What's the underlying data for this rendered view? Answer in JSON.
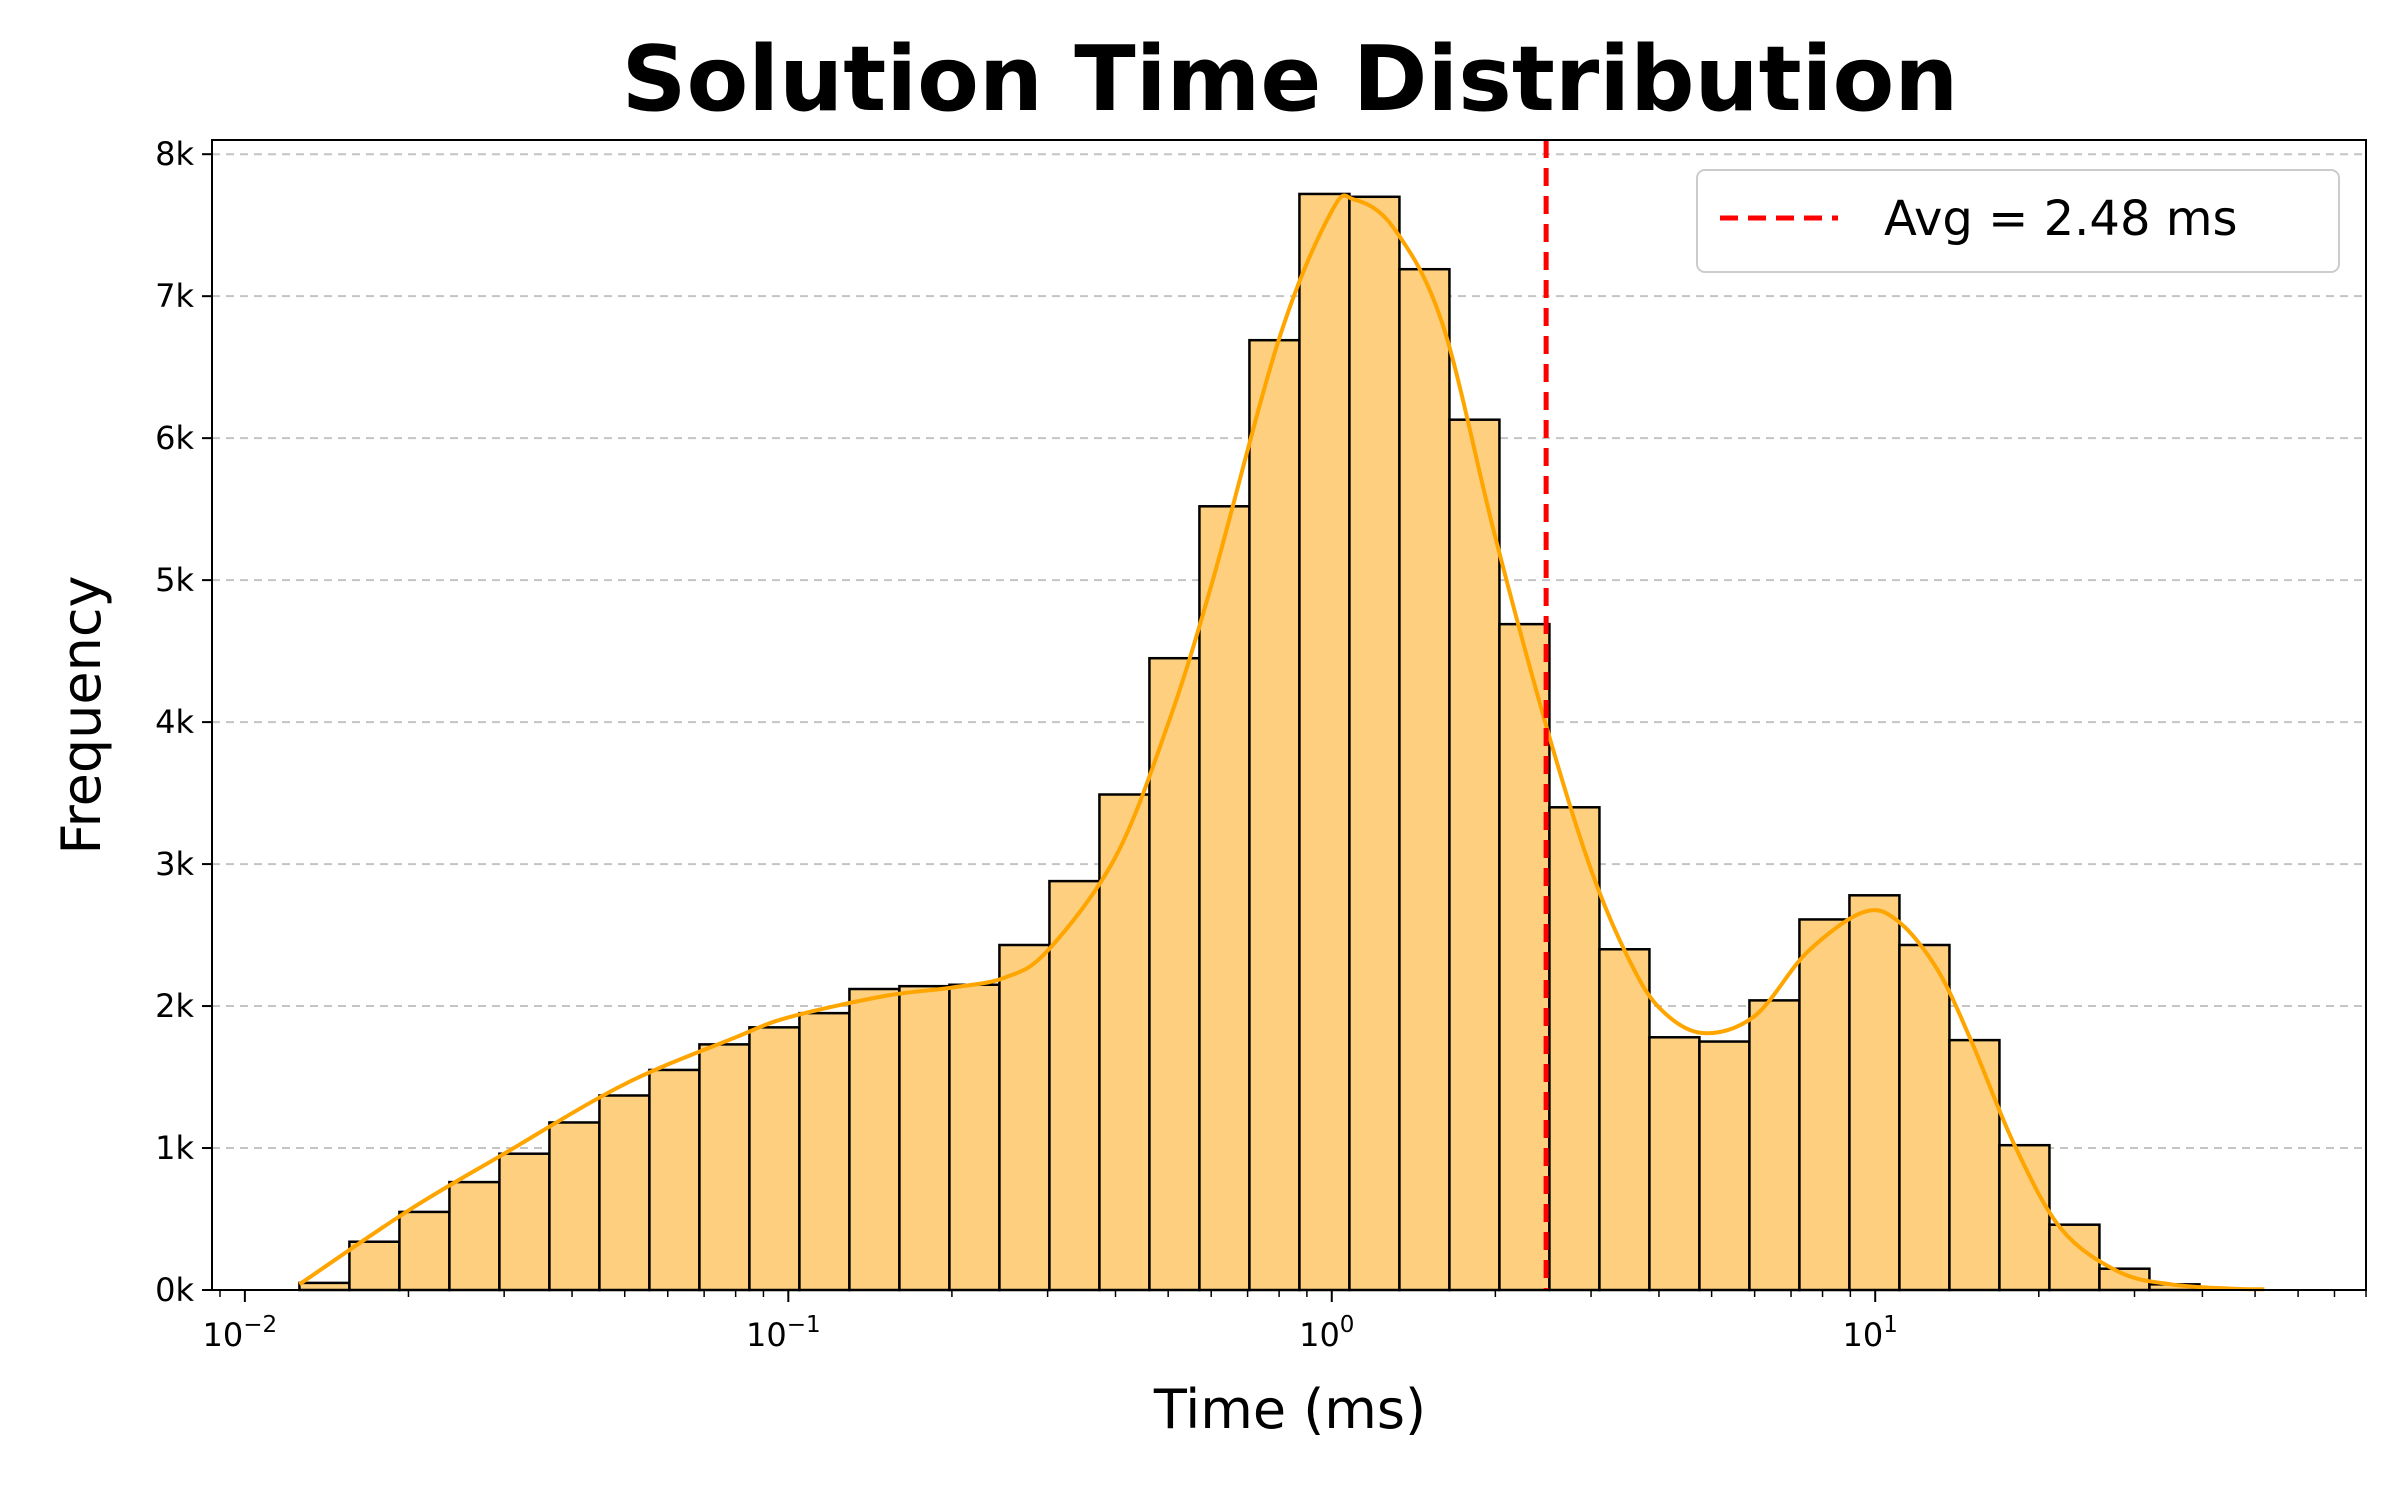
{
  "chart_data": {
    "type": "bar",
    "title": "Solution Time Distribution",
    "xlabel": "Time (ms)",
    "ylabel": "Frequency",
    "x_scale": "log",
    "xlim": [
      0.0087,
      80
    ],
    "ylim": [
      0,
      8100
    ],
    "grid": {
      "axis": "y",
      "style": "dashed"
    },
    "legend": {
      "position": "top-right",
      "entries": [
        "Avg = 2.48 ms"
      ]
    },
    "x_ticks": [
      {
        "value": 0.01,
        "base": "10",
        "exponent": "−2"
      },
      {
        "value": 0.1,
        "base": "10",
        "exponent": "−1"
      },
      {
        "value": 1,
        "base": "10",
        "exponent": "0"
      },
      {
        "value": 10,
        "base": "10",
        "exponent": "1"
      }
    ],
    "y_ticks": [
      {
        "value": 0,
        "label": "0k"
      },
      {
        "value": 1000,
        "label": "1k"
      },
      {
        "value": 2000,
        "label": "2k"
      },
      {
        "value": 3000,
        "label": "3k"
      },
      {
        "value": 4000,
        "label": "4k"
      },
      {
        "value": 5000,
        "label": "5k"
      },
      {
        "value": 6000,
        "label": "6k"
      },
      {
        "value": 7000,
        "label": "7k"
      },
      {
        "value": 8000,
        "label": "8k"
      }
    ],
    "bins": {
      "first_left_edge_ms": 0.0126,
      "last_right_edge_ms": 39.5,
      "values": [
        50,
        340,
        550,
        760,
        960,
        1180,
        1370,
        1550,
        1730,
        1850,
        1950,
        2120,
        2140,
        2150,
        2430,
        2880,
        3490,
        4450,
        5520,
        6690,
        7720,
        7700,
        7190,
        6130,
        4690,
        3400,
        2400,
        1780,
        1750,
        2040,
        2610,
        2780,
        2430,
        1760,
        1020,
        460,
        150,
        40
      ]
    },
    "kde": {
      "x": [
        0.0126,
        0.02,
        0.03,
        0.05,
        0.08,
        0.1,
        0.15,
        0.2,
        0.25,
        0.3,
        0.4,
        0.5,
        0.6,
        0.8,
        1.0,
        1.1,
        1.3,
        1.6,
        2.0,
        2.5,
        3.0,
        3.5,
        4.0,
        4.8,
        6.0,
        7.5,
        9.5,
        11,
        13,
        15,
        18,
        22,
        28,
        35,
        45,
        52
      ],
      "y": [
        40,
        560,
        960,
        1450,
        1780,
        1920,
        2070,
        2130,
        2200,
        2390,
        3050,
        3990,
        4960,
        6700,
        7600,
        7680,
        7480,
        6800,
        5300,
        3930,
        2960,
        2350,
        1990,
        1810,
        1930,
        2380,
        2660,
        2600,
        2260,
        1760,
        1030,
        430,
        130,
        40,
        10,
        5
      ]
    },
    "average_line": {
      "value": 2.48,
      "label": "Avg = 2.48 ms"
    },
    "colors": {
      "bar_fill": "#fecf7e",
      "bar_edge": "#000000",
      "kde_line": "#ffa500",
      "avg_line": "#ff0000",
      "grid": "#c4c4c4"
    }
  }
}
